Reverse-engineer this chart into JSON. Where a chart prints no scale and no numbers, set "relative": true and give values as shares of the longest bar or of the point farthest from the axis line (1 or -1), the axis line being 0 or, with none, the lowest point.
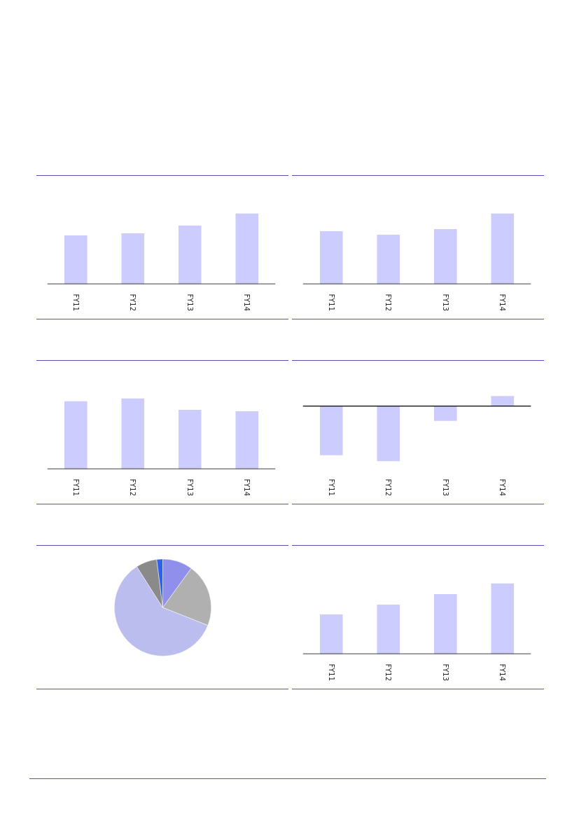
{
  "chart_data": [
    {
      "type": "bar",
      "categories": [
        "FY11",
        "FY12",
        "FY13",
        "FY14"
      ],
      "values": [
        0.69,
        0.72,
        0.83,
        1
      ],
      "color": "#ccccff",
      "relative": true
    },
    {
      "type": "bar",
      "categories": [
        "FY11",
        "FY12",
        "FY13",
        "FY14"
      ],
      "values": [
        0.75,
        0.7,
        0.78,
        1
      ],
      "color": "#ccccff",
      "relative": true
    },
    {
      "type": "bar",
      "categories": [
        "FY11",
        "FY12",
        "FY13",
        "FY14"
      ],
      "values": [
        0.96,
        1,
        0.84,
        0.82
      ],
      "color": "#ccccff",
      "relative": true
    },
    {
      "type": "bar",
      "categories": [
        "FY11",
        "FY12",
        "FY13",
        "FY14"
      ],
      "values": [
        -0.89,
        -1,
        -0.27,
        0.18
      ],
      "color": "#ccccff",
      "relative": true
    },
    {
      "type": "pie",
      "categories": [
        null,
        null,
        null,
        null,
        null
      ],
      "values": [
        10,
        21,
        60,
        7,
        2
      ],
      "colors": [
        "#9090ec",
        "#b0b0b0",
        "#bbbdee",
        "#8a8a8a",
        "#2f62ea"
      ]
    },
    {
      "type": "bar",
      "categories": [
        "FY11",
        "FY12",
        "FY13",
        "FY14"
      ],
      "values": [
        0.56,
        0.7,
        0.85,
        1
      ],
      "color": "#ccccff",
      "relative": true
    }
  ]
}
